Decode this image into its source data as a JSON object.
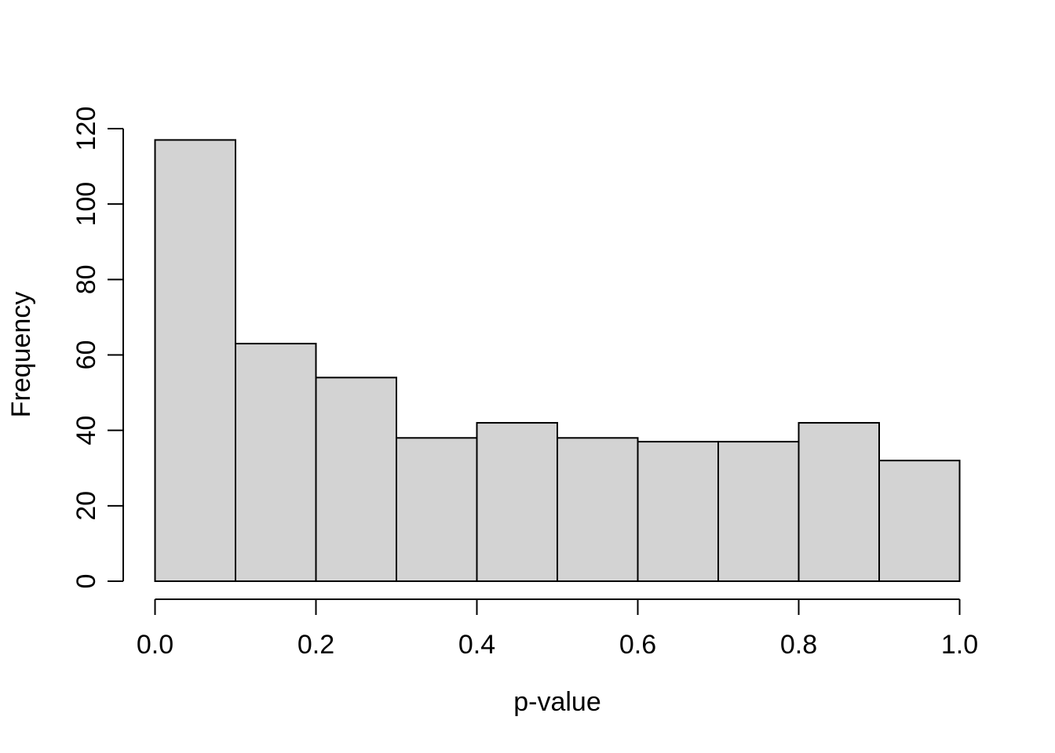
{
  "chart_data": {
    "type": "bar",
    "chart_kind": "histogram",
    "title": "",
    "xlabel": "p-value",
    "ylabel": "Frequency",
    "bin_edges": [
      0.0,
      0.1,
      0.2,
      0.3,
      0.4,
      0.5,
      0.6,
      0.7,
      0.8,
      0.9,
      1.0
    ],
    "values": [
      117,
      63,
      54,
      38,
      42,
      38,
      37,
      37,
      42,
      32
    ],
    "total_count": 500,
    "xlim": [
      0.0,
      1.0
    ],
    "ylim": [
      0,
      120
    ],
    "x_ticks": [
      {
        "value": 0.0,
        "label": "0.0"
      },
      {
        "value": 0.2,
        "label": "0.2"
      },
      {
        "value": 0.4,
        "label": "0.4"
      },
      {
        "value": 0.6,
        "label": "0.6"
      },
      {
        "value": 0.8,
        "label": "0.8"
      },
      {
        "value": 1.0,
        "label": "1.0"
      }
    ],
    "y_ticks": [
      {
        "value": 0,
        "label": "0"
      },
      {
        "value": 20,
        "label": "20"
      },
      {
        "value": 40,
        "label": "40"
      },
      {
        "value": 60,
        "label": "60"
      },
      {
        "value": 80,
        "label": "80"
      },
      {
        "value": 100,
        "label": "100"
      },
      {
        "value": 120,
        "label": "120"
      }
    ],
    "grid": "off",
    "legend": "none",
    "style": {
      "bar_fill": "#d3d3d3",
      "bar_border": "#000000",
      "axis_color": "#000000",
      "background": "#ffffff"
    }
  }
}
